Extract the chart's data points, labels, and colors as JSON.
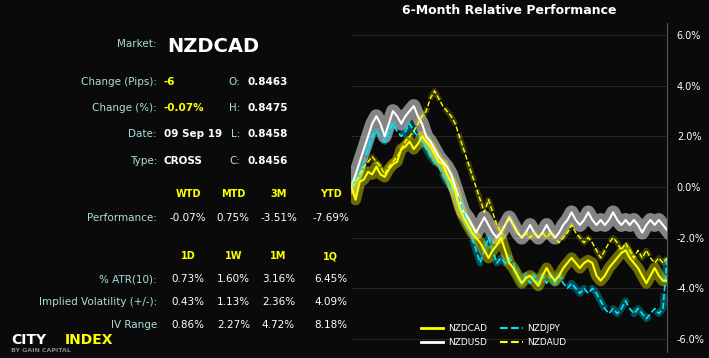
{
  "bg_color": "#0a0a0a",
  "title": "6-Month Relative Performance",
  "market": "NZDCAD",
  "change_pips": "-6",
  "change_pct": "-0.07%",
  "date": "09 Sep 19",
  "type_val": "CROSS",
  "O": "0.8463",
  "H": "0.8475",
  "L": "0.8458",
  "C": "0.8456",
  "perf_headers": [
    "WTD",
    "MTD",
    "3M",
    "YTD"
  ],
  "perf_values": [
    "-0.07%",
    "0.75%",
    "-3.51%",
    "-7.69%"
  ],
  "vol_headers": [
    "1D",
    "1W",
    "1M",
    "1Q"
  ],
  "atr_values": [
    "0.73%",
    "1.60%",
    "3.16%",
    "6.45%"
  ],
  "iv_values": [
    "0.43%",
    "1.13%",
    "2.36%",
    "4.09%"
  ],
  "ivr_values": [
    "0.86%",
    "2.27%",
    "4.72%",
    "8.18%"
  ],
  "yellow": "#ffff00",
  "cyan": "#00e5ff",
  "white": "#ffffff",
  "label_color": "#aadddd",
  "gray_logo": "#888888",
  "nzdcad": [
    0.0,
    -0.5,
    0.2,
    0.3,
    0.6,
    0.5,
    0.8,
    0.5,
    0.4,
    0.7,
    0.9,
    1.0,
    1.5,
    1.6,
    1.8,
    1.5,
    1.7,
    2.0,
    1.8,
    1.6,
    1.3,
    1.0,
    0.9,
    0.5,
    0.2,
    -0.2,
    -0.8,
    -1.2,
    -1.5,
    -1.8,
    -2.0,
    -2.2,
    -2.5,
    -2.8,
    -2.5,
    -2.3,
    -2.0,
    -2.5,
    -3.0,
    -3.2,
    -3.5,
    -3.8,
    -3.6,
    -3.5,
    -3.7,
    -3.9,
    -3.5,
    -3.2,
    -3.5,
    -3.7,
    -3.5,
    -3.2,
    -3.0,
    -2.8,
    -3.0,
    -3.2,
    -3.0,
    -2.9,
    -3.0,
    -3.5,
    -3.7,
    -3.5,
    -3.2,
    -3.0,
    -2.8,
    -2.6,
    -2.5,
    -2.8,
    -3.0,
    -3.2,
    -3.5,
    -3.8,
    -3.5,
    -3.2,
    -3.5,
    -3.7,
    -3.69
  ],
  "nzdusd": [
    0.0,
    0.5,
    1.0,
    1.5,
    2.0,
    2.5,
    2.8,
    2.5,
    2.0,
    2.5,
    3.0,
    2.8,
    2.5,
    2.8,
    3.0,
    3.2,
    2.8,
    2.5,
    2.0,
    1.8,
    1.5,
    1.2,
    1.0,
    0.8,
    0.5,
    0.0,
    -0.5,
    -1.0,
    -1.2,
    -1.5,
    -1.8,
    -1.5,
    -1.2,
    -1.5,
    -1.8,
    -2.0,
    -1.8,
    -1.5,
    -1.2,
    -1.5,
    -1.8,
    -2.0,
    -1.8,
    -1.5,
    -1.8,
    -2.0,
    -1.8,
    -1.5,
    -1.8,
    -2.0,
    -1.8,
    -1.5,
    -1.3,
    -1.0,
    -1.3,
    -1.5,
    -1.3,
    -1.0,
    -1.3,
    -1.5,
    -1.3,
    -1.5,
    -1.3,
    -1.0,
    -1.3,
    -1.5,
    -1.3,
    -1.5,
    -1.3,
    -1.5,
    -1.8,
    -1.5,
    -1.3,
    -1.5,
    -1.3,
    -1.5,
    -1.7
  ],
  "nzdjpy": [
    0.0,
    0.3,
    0.5,
    1.0,
    1.5,
    2.0,
    2.2,
    2.0,
    1.8,
    2.2,
    2.5,
    2.2,
    2.0,
    2.2,
    2.5,
    2.2,
    2.0,
    1.8,
    1.5,
    1.2,
    1.0,
    0.8,
    0.5,
    0.2,
    0.0,
    -0.2,
    -0.5,
    -1.0,
    -1.5,
    -2.0,
    -2.5,
    -3.0,
    -2.5,
    -2.0,
    -2.5,
    -3.0,
    -2.8,
    -3.0,
    -2.8,
    -3.0,
    -3.5,
    -3.8,
    -3.5,
    -3.8,
    -3.5,
    -3.8,
    -3.5,
    -3.8,
    -3.5,
    -3.8,
    -3.5,
    -3.8,
    -4.0,
    -3.8,
    -4.0,
    -4.2,
    -4.0,
    -4.2,
    -4.0,
    -4.2,
    -4.5,
    -4.8,
    -5.0,
    -4.8,
    -5.0,
    -4.8,
    -4.5,
    -4.8,
    -5.0,
    -4.8,
    -5.0,
    -5.2,
    -5.0,
    -4.8,
    -5.0,
    -4.8,
    -2.8
  ],
  "nzdaud": [
    0.0,
    0.2,
    0.5,
    0.8,
    1.0,
    1.2,
    1.0,
    0.8,
    0.5,
    0.8,
    1.0,
    1.2,
    1.5,
    1.8,
    2.0,
    2.2,
    2.5,
    2.8,
    3.0,
    3.5,
    3.8,
    3.5,
    3.2,
    3.0,
    2.8,
    2.5,
    2.0,
    1.5,
    1.0,
    0.5,
    0.0,
    -0.5,
    -1.0,
    -0.5,
    -1.0,
    -1.5,
    -1.8,
    -1.5,
    -1.2,
    -1.5,
    -1.8,
    -2.0,
    -1.8,
    -2.0,
    -1.8,
    -2.0,
    -1.8,
    -2.0,
    -1.8,
    -2.0,
    -2.2,
    -2.0,
    -1.8,
    -1.5,
    -1.8,
    -2.0,
    -2.2,
    -2.0,
    -2.2,
    -2.5,
    -2.8,
    -2.5,
    -2.2,
    -2.0,
    -2.2,
    -2.5,
    -2.2,
    -2.5,
    -2.8,
    -2.5,
    -2.8,
    -2.5,
    -2.8,
    -3.0,
    -2.8,
    -3.0,
    -2.8
  ],
  "ylim": [
    -6.5,
    6.5
  ],
  "yticks": [
    -6.0,
    -4.0,
    -2.0,
    0.0,
    2.0,
    4.0,
    6.0
  ]
}
